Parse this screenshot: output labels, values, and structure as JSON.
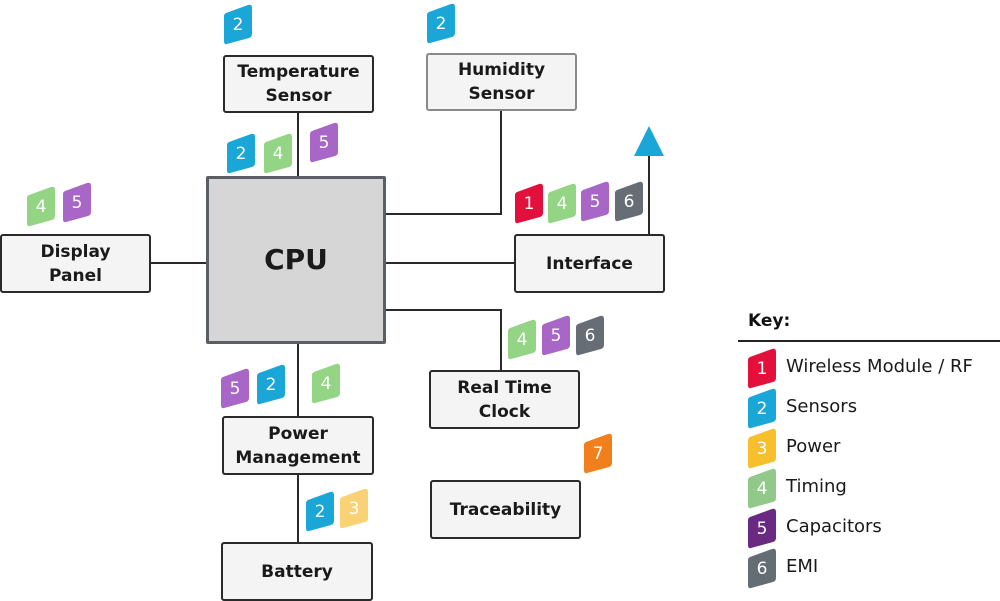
{
  "components": {
    "cpu": {
      "label": "CPU",
      "badges": []
    },
    "temperature_sensor": {
      "label": "Temperature\nSensor",
      "badges_top": [
        2
      ],
      "badges_below": [
        2,
        4,
        5
      ]
    },
    "humidity_sensor": {
      "label": "Humidity\nSensor",
      "badges_top": [
        2
      ]
    },
    "display_panel": {
      "label": "Display\nPanel",
      "badges": [
        4,
        5
      ]
    },
    "interface": {
      "label": "Interface",
      "badges": [
        1,
        4,
        5,
        6
      ]
    },
    "real_time_clock": {
      "label": "Real Time\nClock",
      "badges": [
        4,
        5,
        6
      ]
    },
    "power_management": {
      "label": "Power\nManagement",
      "badges": [
        5,
        2,
        4
      ]
    },
    "battery": {
      "label": "Battery",
      "badges": [
        2,
        3
      ]
    },
    "traceability": {
      "label": "Traceability",
      "badges": [
        7
      ]
    }
  },
  "badge_colors": {
    "1": "#e3103c",
    "2": "#1aa7d8",
    "3": "#f8d274",
    "4": "#93d485",
    "5": "#a866c6",
    "6": "#666d75",
    "7": "#f07f1c"
  },
  "antenna_color": "#1aa7d8",
  "key": {
    "title": "Key:",
    "items": [
      {
        "num": "1",
        "label": "Wireless Module / RF",
        "color": "#e3103c"
      },
      {
        "num": "2",
        "label": "Sensors",
        "color": "#1aa7d8"
      },
      {
        "num": "3",
        "label": "Power",
        "color": "#f6bf2c"
      },
      {
        "num": "4",
        "label": "Timing",
        "color": "#92c98a"
      },
      {
        "num": "5",
        "label": "Capacitors",
        "color": "#6a2a82"
      },
      {
        "num": "6",
        "label": "EMI",
        "color": "#646c74"
      }
    ]
  }
}
